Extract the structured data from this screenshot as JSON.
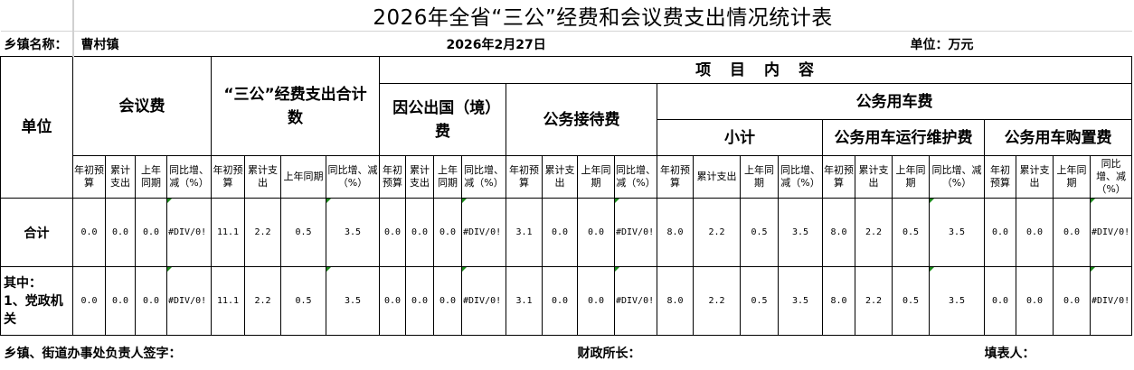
{
  "title": "2026年全省“三公”经费和会议费支出情况统计表",
  "info": {
    "town_label": "乡镇名称：",
    "town_value": "曹村镇",
    "date": "2026年2月27日",
    "unit": "单位：万元"
  },
  "header": {
    "unit_col": "单位",
    "project_content": "项　目　内　容",
    "meeting": "会议费",
    "sangong_total": "“三公”经费支出合计数",
    "abroad": "因公出国（境）费",
    "reception": "公务接待费",
    "vehicle": "公务用车费",
    "subtotal": "小计",
    "vehicle_maintenance": "公务用车运行维护费",
    "vehicle_purchase": "公务用车购置费",
    "subheaders": [
      "年初预算",
      "累计支出",
      "上年同期",
      "同比增、减（%）"
    ]
  },
  "rows": [
    {
      "unit": "合计",
      "values": [
        "0.0",
        "0.0",
        "0.0",
        "#DIV/0!",
        "11.1",
        "2.2",
        "0.5",
        "3.5",
        "0.0",
        "0.0",
        "0.0",
        "#DIV/0!",
        "3.1",
        "0.0",
        "0.0",
        "#DIV/0!",
        "8.0",
        "2.2",
        "0.5",
        "3.5",
        "8.0",
        "2.2",
        "0.5",
        "3.5",
        "0.0",
        "0.0",
        "0.0",
        "#DIV/0!"
      ]
    },
    {
      "unit": "其中：1、党政机关",
      "values": [
        "0.0",
        "0.0",
        "0.0",
        "#DIV/0!",
        "11.1",
        "2.2",
        "0.5",
        "3.5",
        "0.0",
        "0.0",
        "0.0",
        "#DIV/0!",
        "3.1",
        "0.0",
        "0.0",
        "#DIV/0!",
        "8.0",
        "2.2",
        "0.5",
        "3.5",
        "8.0",
        "2.2",
        "0.5",
        "3.5",
        "0.0",
        "0.0",
        "0.0",
        "#DIV/0!"
      ]
    }
  ],
  "footer": {
    "signer": "乡镇、街道办事处负责人签字：",
    "finance_head": "财政所长：",
    "preparer": "填表人："
  },
  "colors": {
    "error_indicator": "#1a8a1a",
    "gridline": "#d0d0d0"
  }
}
